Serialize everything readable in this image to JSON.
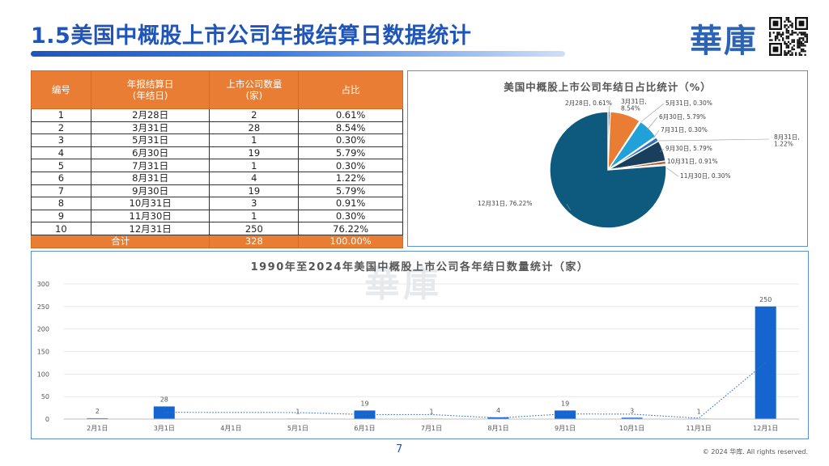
{
  "header": {
    "title": "1.5美国中概股上市公司年报结算日数据统计",
    "logo_text": "華庫"
  },
  "table": {
    "headers": [
      "编号",
      "年报结算日\n(年结日)",
      "上市公司数量\n(家)",
      "占比"
    ],
    "rows": [
      [
        "1",
        "2月28日",
        "2",
        "0.61%"
      ],
      [
        "2",
        "3月31日",
        "28",
        "8.54%"
      ],
      [
        "3",
        "5月31日",
        "1",
        "0.30%"
      ],
      [
        "4",
        "6月30日",
        "19",
        "5.79%"
      ],
      [
        "5",
        "7月31日",
        "1",
        "0.30%"
      ],
      [
        "6",
        "8月31日",
        "4",
        "1.22%"
      ],
      [
        "7",
        "9月30日",
        "19",
        "5.79%"
      ],
      [
        "8",
        "10月31日",
        "3",
        "0.91%"
      ],
      [
        "9",
        "11月30日",
        "1",
        "0.30%"
      ],
      [
        "10",
        "12月31日",
        "250",
        "76.22%"
      ]
    ],
    "total": [
      "合计",
      "328",
      "100.00%"
    ]
  },
  "chart_data": [
    {
      "type": "pie",
      "title": "美国中概股上市公司年结日占比统计（%）",
      "categories": [
        "2月28日",
        "3月31日",
        "5月31日",
        "6月30日",
        "7月31日",
        "8月31日",
        "9月30日",
        "10月31日",
        "11月30日",
        "12月31日"
      ],
      "values": [
        0.61,
        8.54,
        0.3,
        5.79,
        0.3,
        1.22,
        5.79,
        0.91,
        0.3,
        76.22
      ],
      "labels": [
        "2月28日, 0.61%",
        "3月31日,\n8.54%",
        "5月31日, 0.30%",
        "6月30日, 5.79%",
        "7月31日, 0.30%",
        "8月31日,\n1.22%",
        "9月30日, 5.79%",
        "10月31日, 0.91%",
        "11月30日, 0.30%",
        "12月31日, 76.22%"
      ],
      "colors": [
        "#1f4e79",
        "#ea7d34",
        "#a5a5a5",
        "#22a0d8",
        "#7ab648",
        "#2f6fc0",
        "#1a3f5c",
        "#c0562a",
        "#7f7f7f",
        "#0e5a7e"
      ]
    },
    {
      "type": "bar",
      "title": "1990年至2024年美国中概股上市公司各年结日数量统计（家）",
      "categories": [
        "2月1日",
        "3月1日",
        "4月1日",
        "5月1日",
        "6月1日",
        "7月1日",
        "8月1日",
        "9月1日",
        "10月1日",
        "11月1日",
        "12月1日"
      ],
      "values": [
        2,
        28,
        null,
        1,
        19,
        1,
        4,
        19,
        3,
        1,
        250
      ],
      "value_labels": [
        "2",
        "28",
        "",
        "1",
        "19",
        "1",
        "4",
        "19",
        "3",
        "1",
        "250"
      ],
      "ylim": [
        0,
        300
      ],
      "yticks": [
        "0",
        "50",
        "100",
        "150",
        "200",
        "250",
        "300"
      ],
      "trendline": "dotted",
      "grid": true,
      "bar_color": "#1565d0"
    }
  ],
  "footer": {
    "page": "7",
    "copyright": "© 2024 华库. All rights reserved."
  }
}
